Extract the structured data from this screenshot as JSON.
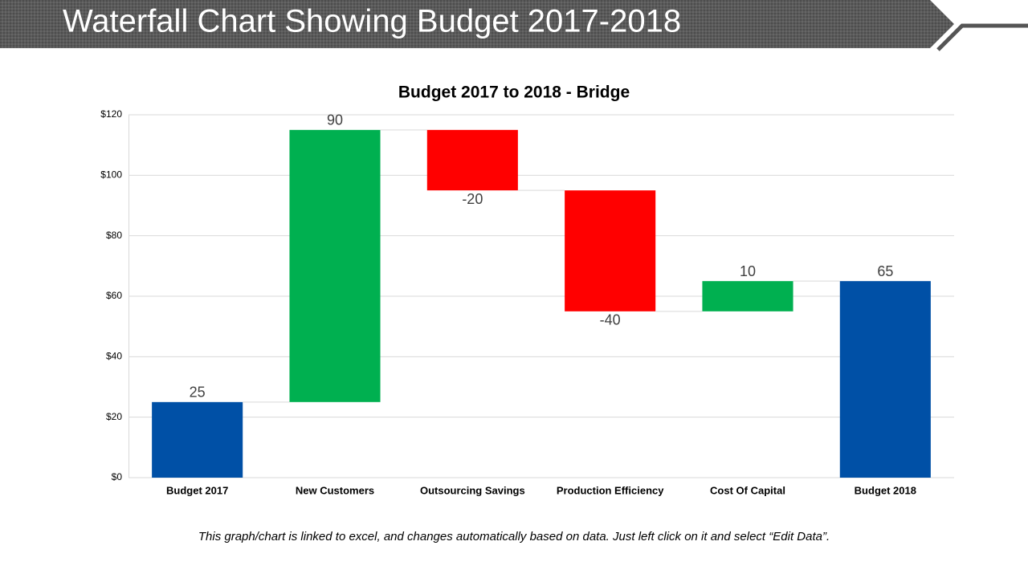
{
  "header": {
    "title": "Waterfall Chart Showing Budget 2017-2018"
  },
  "footnote": "This graph/chart is linked to excel, and changes automatically based on data. Just left click on it and select “Edit Data”.",
  "chart_data": {
    "type": "waterfall",
    "title": "Budget 2017 to 2018 -  Bridge",
    "categories": [
      "Budget 2017",
      "New Customers",
      "Outsourcing Savings",
      "Production Efficiency",
      "Cost Of Capital",
      "Budget 2018"
    ],
    "values": [
      25,
      90,
      -20,
      -40,
      10,
      65
    ],
    "colors": [
      "#0050a6",
      "#00b050",
      "#ff0000",
      "#ff0000",
      "#00b050",
      "#0050a6"
    ],
    "ylim": [
      0,
      120
    ],
    "yticks": [
      {
        "value": 0,
        "label": "$0"
      },
      {
        "value": 20,
        "label": "$20"
      },
      {
        "value": 40,
        "label": "$40"
      },
      {
        "value": 60,
        "label": "$60"
      },
      {
        "value": 80,
        "label": "$80"
      },
      {
        "value": 100,
        "label": "$100"
      },
      {
        "value": 120,
        "label": "$120"
      }
    ],
    "grid": true
  }
}
